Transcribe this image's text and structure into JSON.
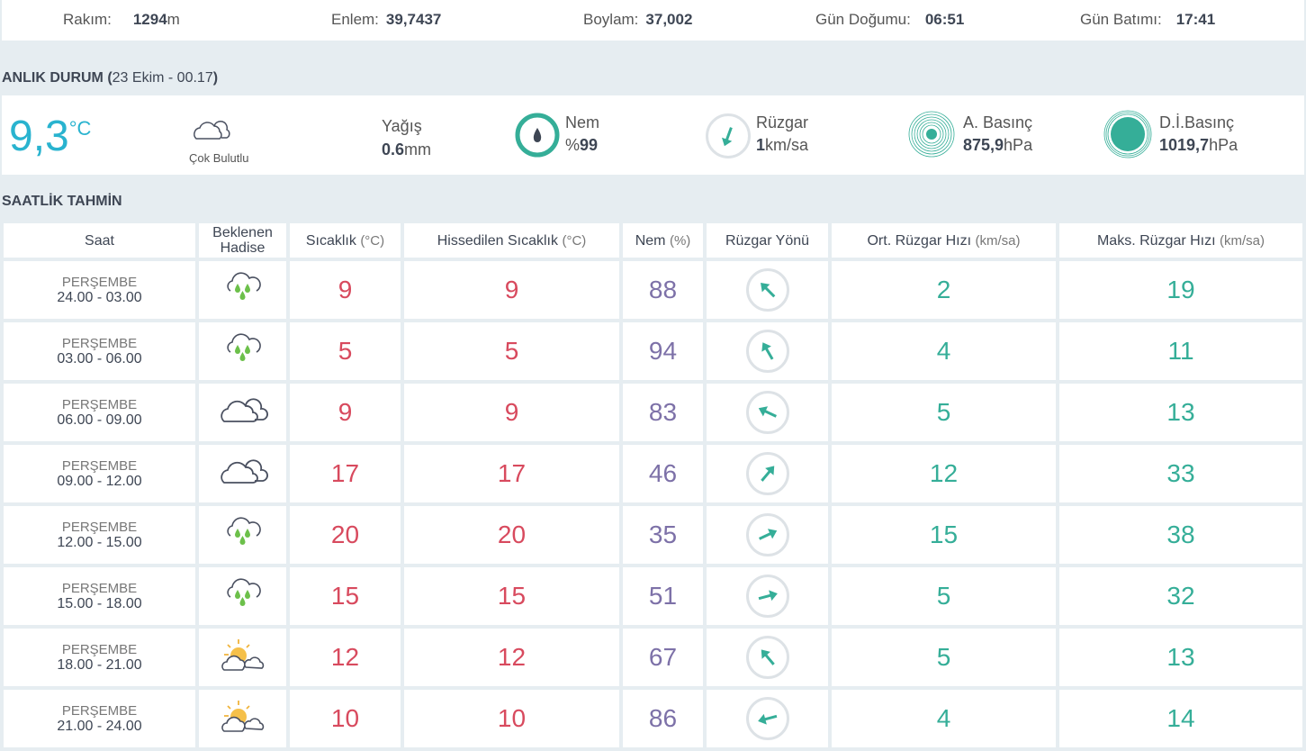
{
  "info": {
    "altitude_label": "Rakım:",
    "altitude": "1294",
    "altitude_unit": "m",
    "lat_label": "Enlem:",
    "lat": "39,7437",
    "lon_label": "Boylam:",
    "lon": "37,002",
    "sunrise_label": "Gün Doğumu:",
    "sunrise": "06:51",
    "sunset_label": "Gün Batımı:",
    "sunset": "17:41"
  },
  "current": {
    "title": "ANLIK DURUM (",
    "date": "23 Ekim - 00.17",
    "close": ")",
    "temp": "9,3",
    "temp_unit": "°C",
    "condition": "Çok Bulutlu",
    "precip_label": "Yağış",
    "precip": "0.6",
    "precip_unit": "mm",
    "humidity_label": "Nem",
    "humidity_prefix": "%",
    "humidity": "99",
    "humidity_pct": 99,
    "wind_label": "Rüzgar",
    "wind": "1",
    "wind_unit": "km/sa",
    "wind_direction_deg": 200,
    "pressure_label": "A. Basınç",
    "pressure": "875,9",
    "pressure_unit": "hPa",
    "sea_pressure_label": "D.İ.Basınç",
    "sea_pressure": "1019,7",
    "sea_pressure_unit": "hPa"
  },
  "forecast": {
    "title": "SAATLİK TAHMİN",
    "headers": {
      "time": "Saat",
      "event1": "Beklenen",
      "event2": "Hadise",
      "temp": "Sıcaklık",
      "temp_u": "(°C)",
      "feels": "Hissedilen Sıcaklık",
      "feels_u": "(°C)",
      "hum": "Nem",
      "hum_u": "(%)",
      "dir": "Rüzgar Yönü",
      "avg": "Ort. Rüzgar Hızı",
      "avg_u": "(km/sa)",
      "max": "Maks. Rüzgar Hızı",
      "max_u": "(km/sa)"
    },
    "rows": [
      {
        "day": "PERŞEMBE",
        "range": "24.00 - 03.00",
        "icon": "rain",
        "temp": "9",
        "feels": "9",
        "hum": "88",
        "dir": -45,
        "avg": "2",
        "max": "19"
      },
      {
        "day": "PERŞEMBE",
        "range": "03.00 - 06.00",
        "icon": "rain",
        "temp": "5",
        "feels": "5",
        "hum": "94",
        "dir": -30,
        "avg": "4",
        "max": "11"
      },
      {
        "day": "PERŞEMBE",
        "range": "06.00 - 09.00",
        "icon": "cloudy",
        "temp": "9",
        "feels": "9",
        "hum": "83",
        "dir": -65,
        "avg": "5",
        "max": "13"
      },
      {
        "day": "PERŞEMBE",
        "range": "09.00 - 12.00",
        "icon": "cloudy",
        "temp": "17",
        "feels": "17",
        "hum": "46",
        "dir": 40,
        "avg": "12",
        "max": "33"
      },
      {
        "day": "PERŞEMBE",
        "range": "12.00 - 15.00",
        "icon": "rain",
        "temp": "20",
        "feels": "20",
        "hum": "35",
        "dir": 65,
        "avg": "15",
        "max": "38"
      },
      {
        "day": "PERŞEMBE",
        "range": "15.00 - 18.00",
        "icon": "rain",
        "temp": "15",
        "feels": "15",
        "hum": "51",
        "dir": 75,
        "avg": "5",
        "max": "32"
      },
      {
        "day": "PERŞEMBE",
        "range": "18.00 - 21.00",
        "icon": "partly-sunny",
        "temp": "12",
        "feels": "12",
        "hum": "67",
        "dir": -40,
        "avg": "5",
        "max": "13"
      },
      {
        "day": "PERŞEMBE",
        "range": "21.00 - 24.00",
        "icon": "partly-sunny",
        "temp": "10",
        "feels": "10",
        "hum": "86",
        "dir": -105,
        "avg": "4",
        "max": "14"
      }
    ]
  }
}
